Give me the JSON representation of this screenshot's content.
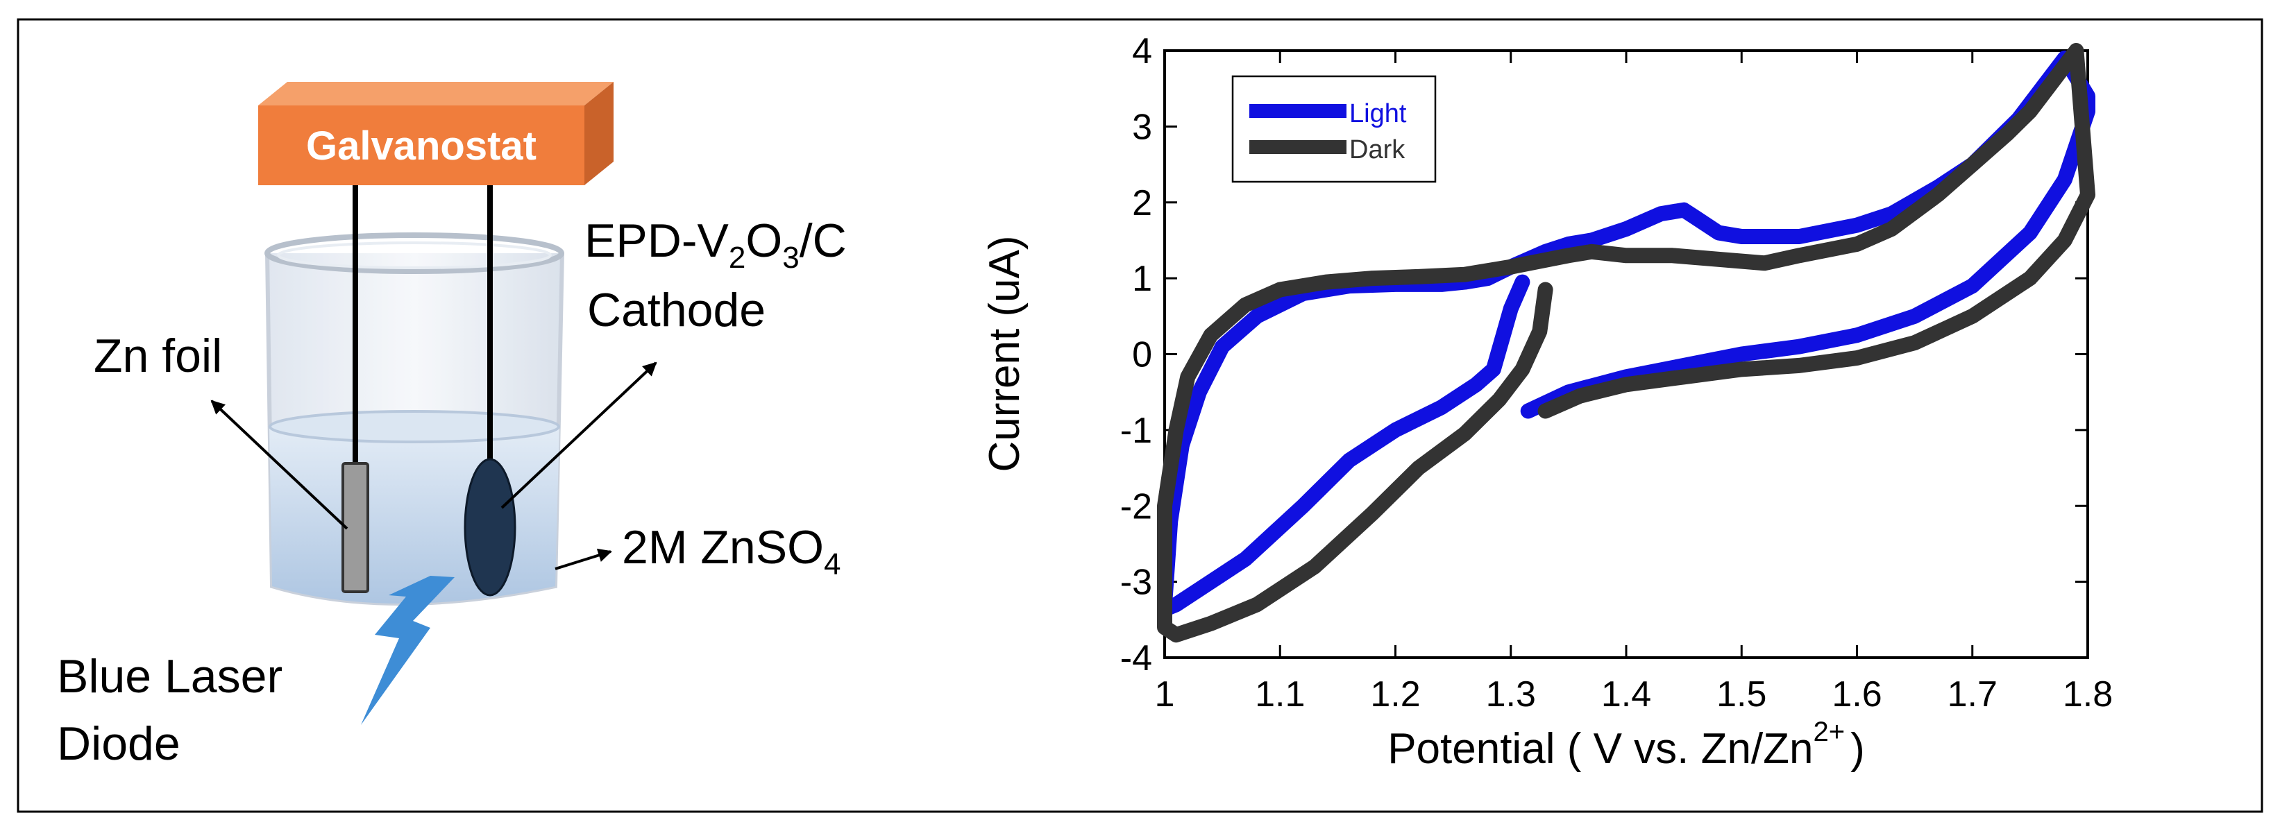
{
  "schematic": {
    "galvanostat_label": "Galvanostat",
    "cathode_label_line1_prefix": "EPD-V",
    "cathode_label_sub1": "2",
    "cathode_label_mid": "O",
    "cathode_label_sub2": "3",
    "cathode_label_suffix": "/C",
    "cathode_label_line2": "Cathode",
    "zn_foil_label": "Zn foil",
    "electrolyte_label_prefix": "2M ZnSO",
    "electrolyte_label_sub": "4",
    "laser_label_line1": "Blue Laser",
    "laser_label_line2": "Diode"
  },
  "colors": {
    "galvanostat": "#F07D3C",
    "galvanostat_top": "#F5A06A",
    "galvanostat_side": "#C9622A",
    "liquid": "#C9D9EC",
    "cathode": "#1F3550",
    "zn_foil": "#9B9B9B",
    "laser": "#3E8DD6",
    "light_series": "#1010E0",
    "dark_series": "#333333"
  },
  "chart_data": {
    "type": "line",
    "title": "",
    "xlabel_prefix": "Potential ( V vs. Zn/Zn",
    "xlabel_sup": "2+",
    "xlabel_suffix": ")",
    "ylabel": "Current (uA)",
    "xlim": [
      1.0,
      1.8
    ],
    "ylim": [
      -4,
      4
    ],
    "xticks": [
      "1",
      "1.1",
      "1.2",
      "1.3",
      "1.4",
      "1.5",
      "1.6",
      "1.7",
      "1.8"
    ],
    "yticks": [
      "4",
      "3",
      "2",
      "1",
      "0",
      "-1",
      "-2",
      "-3",
      "-4"
    ],
    "legend": [
      "Light",
      "Dark"
    ],
    "legend_position": "top-left",
    "series": [
      {
        "name": "Light",
        "x": [
          1.315,
          1.35,
          1.4,
          1.45,
          1.5,
          1.55,
          1.6,
          1.65,
          1.7,
          1.75,
          1.78,
          1.8,
          1.8,
          1.78,
          1.76,
          1.74,
          1.72,
          1.7,
          1.67,
          1.63,
          1.6,
          1.55,
          1.5,
          1.48,
          1.46,
          1.45,
          1.43,
          1.4,
          1.37,
          1.35,
          1.33,
          1.3,
          1.28,
          1.26,
          1.24,
          1.2,
          1.16,
          1.12,
          1.08,
          1.05,
          1.03,
          1.015,
          1.005,
          1.0,
          1.002,
          1.01,
          1.03,
          1.07,
          1.12,
          1.16,
          1.2,
          1.24,
          1.27,
          1.285,
          1.3,
          1.31
        ],
        "y": [
          -0.75,
          -0.5,
          -0.3,
          -0.15,
          0.0,
          0.1,
          0.25,
          0.5,
          0.9,
          1.6,
          2.3,
          3.2,
          3.4,
          3.9,
          3.5,
          3.1,
          2.8,
          2.5,
          2.2,
          1.85,
          1.7,
          1.55,
          1.55,
          1.6,
          1.8,
          1.9,
          1.85,
          1.65,
          1.5,
          1.45,
          1.35,
          1.15,
          1.0,
          0.95,
          0.92,
          0.92,
          0.9,
          0.8,
          0.5,
          0.1,
          -0.5,
          -1.2,
          -2.2,
          -3.3,
          -3.35,
          -3.3,
          -3.1,
          -2.7,
          -2.0,
          -1.4,
          -1.0,
          -0.7,
          -0.4,
          -0.2,
          0.6,
          0.95
        ]
      },
      {
        "name": "Dark",
        "x": [
          1.33,
          1.36,
          1.4,
          1.45,
          1.5,
          1.55,
          1.6,
          1.65,
          1.7,
          1.75,
          1.78,
          1.8,
          1.8,
          1.79,
          1.77,
          1.75,
          1.73,
          1.7,
          1.67,
          1.63,
          1.6,
          1.55,
          1.52,
          1.48,
          1.44,
          1.4,
          1.37,
          1.35,
          1.3,
          1.26,
          1.22,
          1.18,
          1.14,
          1.1,
          1.07,
          1.04,
          1.02,
          1.01,
          1.0,
          1.0,
          1.01,
          1.04,
          1.08,
          1.13,
          1.18,
          1.22,
          1.26,
          1.29,
          1.31,
          1.325,
          1.33
        ],
        "y": [
          -0.75,
          -0.55,
          -0.4,
          -0.3,
          -0.2,
          -0.15,
          -0.05,
          0.15,
          0.5,
          1.0,
          1.5,
          2.1,
          2.1,
          4.0,
          3.6,
          3.2,
          2.9,
          2.5,
          2.1,
          1.65,
          1.45,
          1.3,
          1.2,
          1.25,
          1.3,
          1.3,
          1.35,
          1.3,
          1.15,
          1.05,
          1.02,
          1.0,
          0.95,
          0.85,
          0.65,
          0.25,
          -0.3,
          -1.0,
          -2.0,
          -3.6,
          -3.7,
          -3.55,
          -3.3,
          -2.8,
          -2.1,
          -1.5,
          -1.05,
          -0.6,
          -0.2,
          0.3,
          0.85
        ]
      }
    ]
  }
}
